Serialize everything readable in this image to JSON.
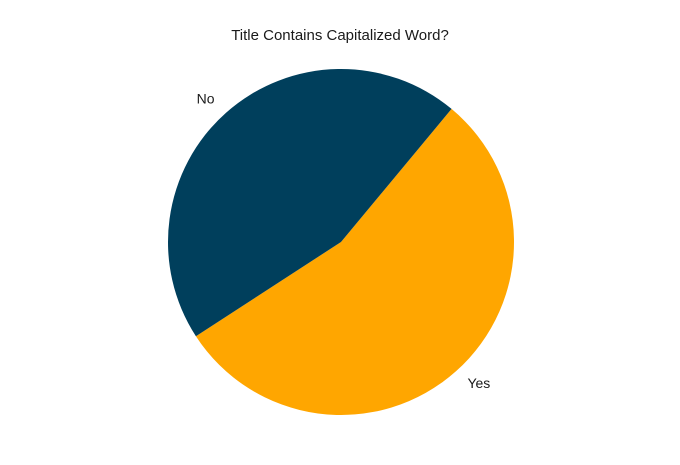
{
  "chart_data": {
    "type": "pie",
    "title": "Title Contains Capitalized Word?",
    "categories": [
      "Yes",
      "No"
    ],
    "values": [
      54.8,
      45.2
    ],
    "colors": [
      "#FFA600",
      "#003F5C"
    ],
    "start_angle_deg": -147,
    "direction": "counterclockwise",
    "legend": "none"
  }
}
